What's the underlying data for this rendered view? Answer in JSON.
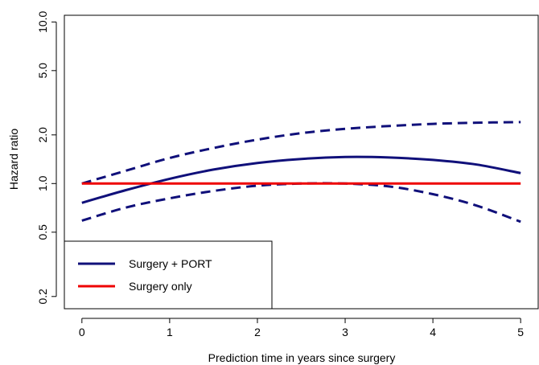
{
  "chart_data": {
    "type": "line",
    "title": "",
    "xlabel": "Prediction time in years since surgery",
    "ylabel": "Hazard ratio",
    "x_scale": "linear",
    "y_scale": "log",
    "xlim": [
      -0.2,
      5.2
    ],
    "ylim": [
      0.168,
      11.0
    ],
    "xticks": [
      0,
      1,
      2,
      3,
      4,
      5
    ],
    "xtick_labels": [
      "0",
      "1",
      "2",
      "3",
      "4",
      "5"
    ],
    "yticks": [
      0.2,
      0.5,
      1.0,
      2.0,
      5.0,
      10.0
    ],
    "ytick_labels": [
      "0.2",
      "0.5",
      "1.0",
      "2.0",
      "5.0",
      "10.0"
    ],
    "grid": false,
    "legend_position": "bottom-left",
    "series": [
      {
        "name": "Surgery + PORT",
        "role": "estimate",
        "color": "#10107a",
        "dash": "solid",
        "x": [
          0,
          0.5,
          1,
          1.5,
          2,
          2.5,
          3,
          3.5,
          4,
          4.5,
          5
        ],
        "y": [
          0.76,
          0.91,
          1.07,
          1.22,
          1.34,
          1.42,
          1.46,
          1.45,
          1.4,
          1.31,
          1.16
        ]
      },
      {
        "name": "",
        "role": "upper-bound",
        "color": "#10107a",
        "dash": "dashed",
        "x": [
          0,
          0.5,
          1,
          1.5,
          2,
          2.5,
          3,
          3.5,
          4,
          4.5,
          5
        ],
        "y": [
          1.0,
          1.2,
          1.44,
          1.66,
          1.87,
          2.05,
          2.18,
          2.27,
          2.34,
          2.38,
          2.4
        ]
      },
      {
        "name": "",
        "role": "lower-bound",
        "color": "#10107a",
        "dash": "dashed",
        "x": [
          0,
          0.5,
          1,
          1.5,
          2,
          2.5,
          3,
          3.5,
          4,
          4.5,
          5
        ],
        "y": [
          0.59,
          0.71,
          0.81,
          0.9,
          0.97,
          1.0,
          1.0,
          0.96,
          0.86,
          0.73,
          0.58
        ]
      },
      {
        "name": "Surgery only",
        "role": "reference",
        "color": "#ee0000",
        "dash": "solid",
        "x": [
          0,
          5
        ],
        "y": [
          1.0,
          1.0
        ]
      }
    ],
    "legend": [
      {
        "label": "Surgery + PORT",
        "color": "#10107a"
      },
      {
        "label": "Surgery only",
        "color": "#ee0000"
      }
    ]
  }
}
